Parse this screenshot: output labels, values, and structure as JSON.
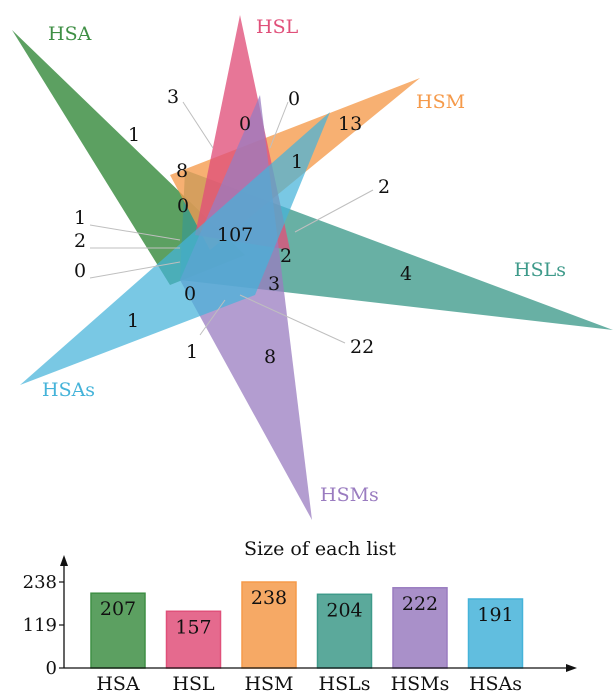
{
  "venn": {
    "sets": [
      {
        "name": "HSA",
        "color": "#3f8f45"
      },
      {
        "name": "HSL",
        "color": "#e0507a"
      },
      {
        "name": "HSM",
        "color": "#f59a4a"
      },
      {
        "name": "HSLs",
        "color": "#3e9a8a"
      },
      {
        "name": "HSMs",
        "color": "#9a7cc0"
      },
      {
        "name": "HSAs",
        "color": "#45b3d9"
      }
    ],
    "counts": [
      "1",
      "0",
      "13",
      "4",
      "8",
      "1",
      "3",
      "0",
      "8",
      "1",
      "0",
      "107",
      "2",
      "0",
      "3",
      "1",
      "2",
      "0",
      "2",
      "22",
      "1"
    ]
  },
  "chart_data": {
    "type": "bar",
    "title": "Size of each list",
    "categories": [
      "HSA",
      "HSL",
      "HSM",
      "HSLs",
      "HSMs",
      "HSAs"
    ],
    "values": [
      207,
      157,
      238,
      204,
      222,
      191
    ],
    "yticks": [
      0,
      119,
      238
    ],
    "ylim": [
      0,
      238
    ],
    "colors": [
      "#3f8f45",
      "#e0507a",
      "#f59a4a",
      "#3e9a8a",
      "#9a7cc0",
      "#45b3d9"
    ],
    "grid": false
  }
}
